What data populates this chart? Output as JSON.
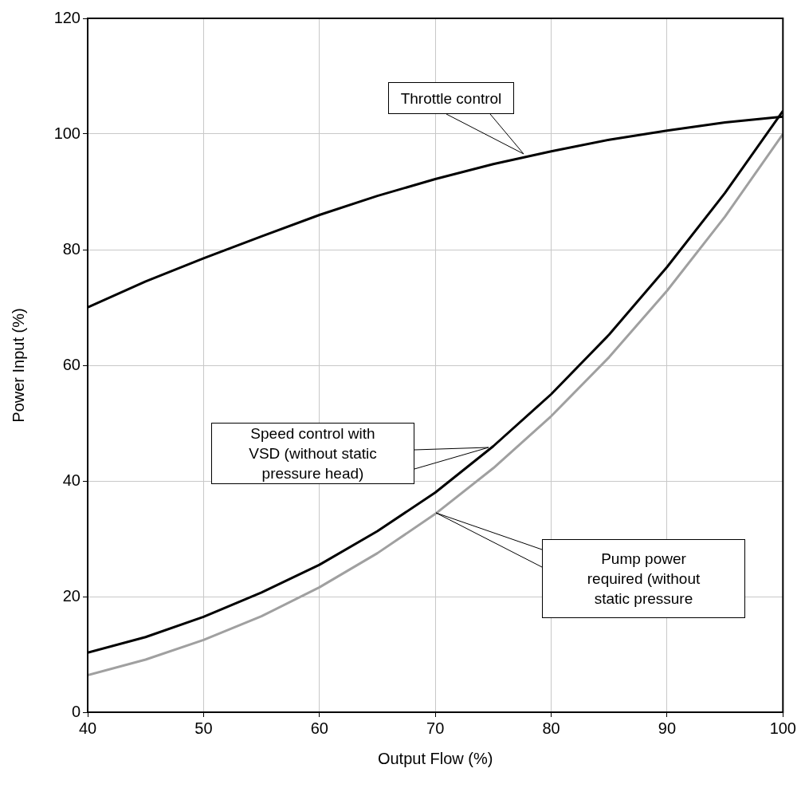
{
  "chart_data": {
    "type": "line",
    "xlabel": "Output Flow (%)",
    "ylabel": "Power Input (%)",
    "x": [
      40,
      45,
      50,
      55,
      60,
      65,
      70,
      75,
      80,
      85,
      90,
      95,
      100
    ],
    "series": [
      {
        "color": "#000000",
        "values": [
          70,
          74.5,
          78.5,
          82.3,
          86,
          89.3,
          92.2,
          94.8,
          97,
          99,
          100.6,
          102,
          103
        ]
      },
      {
        "color": "#000000",
        "values": [
          10.3,
          13,
          16.5,
          20.7,
          25.5,
          31.3,
          38,
          46,
          55,
          65.3,
          77,
          89.8,
          104
        ]
      },
      {
        "color": "#a0a0a0",
        "values": [
          6.4,
          9.1,
          12.5,
          16.6,
          21.6,
          27.5,
          34.3,
          42.2,
          51.2,
          61.4,
          72.9,
          85.7,
          100
        ]
      }
    ],
    "annotations": [
      "Throttle control",
      "Speed control with VSD (without static pressure head)",
      "Pump power required (without static pressure"
    ],
    "xlim": [
      40,
      100
    ],
    "xticks": [
      40,
      50,
      60,
      70,
      80,
      90,
      100
    ],
    "ylim": [
      0,
      120
    ],
    "yticks": [
      0,
      20,
      40,
      60,
      80,
      100,
      120
    ],
    "grid": true,
    "legend": false,
    "marker": "none",
    "line_style": "solid"
  }
}
